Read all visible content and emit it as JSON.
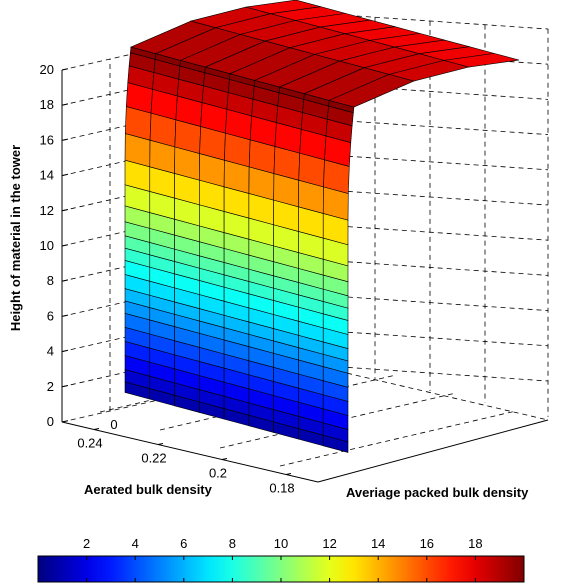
{
  "chart_data": {
    "type": "surface3d",
    "zlabel": "Height of material in the tower",
    "xlabel": "Aerated bulk density",
    "ylabel": "Averiage packed bulk density",
    "zlim": [
      0,
      20
    ],
    "zticks": [
      0,
      2,
      4,
      6,
      8,
      10,
      12,
      14,
      16,
      18,
      20
    ],
    "xlim": [
      0.17,
      0.25
    ],
    "xticks": [
      0.24,
      0.22,
      0.2,
      0.18
    ],
    "yticks": [
      0
    ],
    "grid": true,
    "colormap": "jet",
    "colorbar": {
      "location": "bottom",
      "range": [
        0,
        20
      ],
      "ticks": [
        2,
        4,
        6,
        8,
        10,
        12,
        14,
        16,
        18
      ]
    },
    "surface": {
      "rows": 9,
      "x": [
        0.246,
        0.24,
        0.233,
        0.226,
        0.219,
        0.212,
        0.205,
        0.197,
        0.19,
        0.182,
        0.175
      ],
      "heights_front_edge": [
        0.6,
        1.2,
        1.9,
        2.7,
        3.5,
        4.3,
        5.1,
        5.8,
        6.5,
        7.3,
        8.1,
        8.8,
        9.5,
        10.3,
        11.2,
        12.4,
        13.8,
        15.3,
        16.8,
        18.1,
        19.0,
        19.7,
        20.0
      ],
      "top_value": 20
    }
  }
}
